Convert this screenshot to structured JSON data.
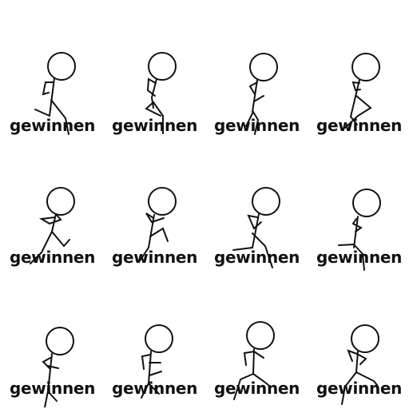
{
  "stroke_color": "#111111",
  "background": "#ffffff",
  "frames": [
    {
      "label": "gewinnen"
    },
    {
      "label": "gewinnen"
    },
    {
      "label": "gewinnen"
    },
    {
      "label": "gewinnen"
    },
    {
      "label": "gewinnen"
    },
    {
      "label": "gewinnen"
    },
    {
      "label": "gewinnen"
    },
    {
      "label": "gewinnen"
    },
    {
      "label": "gewinnen"
    },
    {
      "label": "gewinnen"
    },
    {
      "label": "gewinnen"
    },
    {
      "label": "gewinnen"
    }
  ]
}
